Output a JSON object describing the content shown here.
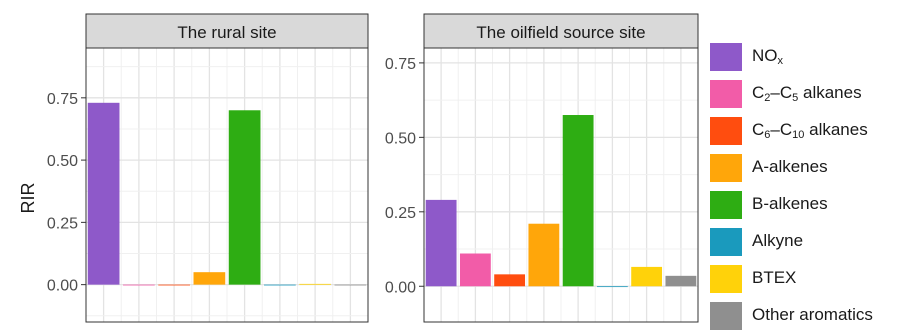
{
  "chart_data": {
    "type": "bar",
    "ylabel": "RIR",
    "categories": [
      "NOx",
      "C2–C5 alkanes",
      "C6–C10 alkanes",
      "A-alkenes",
      "B-alkenes",
      "Alkyne",
      "BTEX",
      "Other aromatics"
    ],
    "colors": [
      "#8e59c9",
      "#f25ca8",
      "#ff4d0f",
      "#ffa60a",
      "#2ead13",
      "#1a9abd",
      "#ffd20a",
      "#8f8f8f"
    ],
    "legend_rich": [
      {
        "main": "NO",
        "sub": "x",
        "tail": "",
        "sub2": "",
        "end": ""
      },
      {
        "main": "C",
        "sub": "2",
        "tail": "–C",
        "sub2": "5",
        "end": " alkanes"
      },
      {
        "main": "C",
        "sub": "6",
        "tail": "–C",
        "sub2": "10",
        "end": " alkanes"
      },
      {
        "main": "A-alkenes",
        "sub": "",
        "tail": "",
        "sub2": "",
        "end": ""
      },
      {
        "main": "B-alkenes",
        "sub": "",
        "tail": "",
        "sub2": "",
        "end": ""
      },
      {
        "main": "Alkyne",
        "sub": "",
        "tail": "",
        "sub2": "",
        "end": ""
      },
      {
        "main": "BTEX",
        "sub": "",
        "tail": "",
        "sub2": "",
        "end": ""
      },
      {
        "main": "Other aromatics",
        "sub": "",
        "tail": "",
        "sub2": "",
        "end": ""
      }
    ],
    "legend_placement": "right",
    "grid": true,
    "panels": [
      {
        "title": "The rural site",
        "ylim": [
          -0.15,
          0.95
        ],
        "yticks": [
          0.0,
          0.25,
          0.5,
          0.75
        ],
        "ytick_labels": [
          "0.00",
          "0.25",
          "0.50",
          "0.75"
        ],
        "values": [
          0.73,
          -0.003,
          -0.003,
          0.05,
          0.7,
          0.0,
          0.003,
          0.0
        ]
      },
      {
        "title": "The oilfield source site",
        "ylim": [
          -0.12,
          0.8
        ],
        "yticks": [
          0.0,
          0.25,
          0.5,
          0.75
        ],
        "ytick_labels": [
          "0.00",
          "0.25",
          "0.50",
          "0.75"
        ],
        "values": [
          0.29,
          0.11,
          0.04,
          0.21,
          0.575,
          0.0,
          0.065,
          0.035
        ]
      }
    ]
  }
}
